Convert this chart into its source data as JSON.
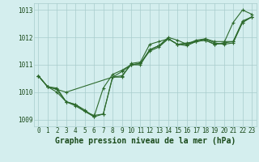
{
  "title": "Graphe pression niveau de la mer (hPa)",
  "background_color": "#d4eeee",
  "grid_color": "#a8cccc",
  "line_color": "#2d6a2d",
  "series": [
    {
      "x": [
        0,
        1,
        2,
        3,
        4,
        5,
        6,
        7,
        8,
        9,
        10,
        11,
        12,
        13,
        14,
        15,
        16,
        17,
        18,
        19,
        20,
        21,
        22,
        23
      ],
      "y": [
        1010.6,
        1010.2,
        1010.15,
        1009.65,
        1009.55,
        1009.3,
        1009.15,
        1009.2,
        1010.55,
        1010.55,
        1011.05,
        1011.1,
        1011.75,
        1011.85,
        1011.95,
        1011.75,
        1011.8,
        1011.85,
        1011.9,
        1011.75,
        1011.8,
        1012.55,
        1013.0,
        1012.85
      ]
    },
    {
      "x": [
        0,
        1,
        2,
        3,
        4,
        5,
        6,
        7,
        8,
        9,
        10,
        11,
        12,
        13,
        14,
        15,
        16,
        17,
        18,
        19,
        20,
        21,
        22,
        23
      ],
      "y": [
        1010.6,
        1010.2,
        1010.0,
        1009.65,
        1009.55,
        1009.35,
        1009.1,
        1010.15,
        1010.65,
        1010.8,
        1011.0,
        1011.05,
        1011.55,
        1011.7,
        1012.0,
        1011.9,
        1011.75,
        1011.9,
        1011.95,
        1011.85,
        1011.85,
        1011.85,
        1012.6,
        1012.75
      ]
    },
    {
      "x": [
        0,
        1,
        3,
        8,
        9,
        10,
        11,
        12,
        13,
        14,
        15,
        16,
        17,
        18,
        19,
        20,
        21,
        22,
        23
      ],
      "y": [
        1010.6,
        1010.2,
        1010.0,
        1010.55,
        1010.75,
        1011.0,
        1011.05,
        1011.5,
        1011.65,
        1011.95,
        1011.75,
        1011.7,
        1011.85,
        1011.95,
        1011.8,
        1011.75,
        1011.8,
        1012.55,
        1012.75
      ]
    },
    {
      "x": [
        0,
        1,
        2,
        3,
        4,
        5,
        6,
        7,
        8,
        9,
        10,
        11,
        12,
        13,
        14,
        15,
        16,
        17,
        18,
        19,
        20,
        21,
        22,
        23
      ],
      "y": [
        1010.6,
        1010.2,
        1010.1,
        1009.65,
        1009.5,
        1009.3,
        1009.1,
        1009.2,
        1010.55,
        1010.6,
        1011.0,
        1011.0,
        1011.55,
        1011.7,
        1011.95,
        1011.75,
        1011.75,
        1011.85,
        1011.9,
        1011.75,
        1011.8,
        1011.85,
        1012.55,
        1012.75
      ]
    }
  ],
  "xlim": [
    -0.5,
    23.5
  ],
  "ylim": [
    1008.75,
    1013.25
  ],
  "yticks": [
    1009,
    1010,
    1011,
    1012,
    1013
  ],
  "xticks": [
    0,
    1,
    2,
    3,
    4,
    5,
    6,
    7,
    8,
    9,
    10,
    11,
    12,
    13,
    14,
    15,
    16,
    17,
    18,
    19,
    20,
    21,
    22,
    23
  ],
  "marker": "+",
  "markersize": 3,
  "linewidth": 0.8,
  "title_fontsize": 7.0,
  "tick_fontsize": 5.5
}
